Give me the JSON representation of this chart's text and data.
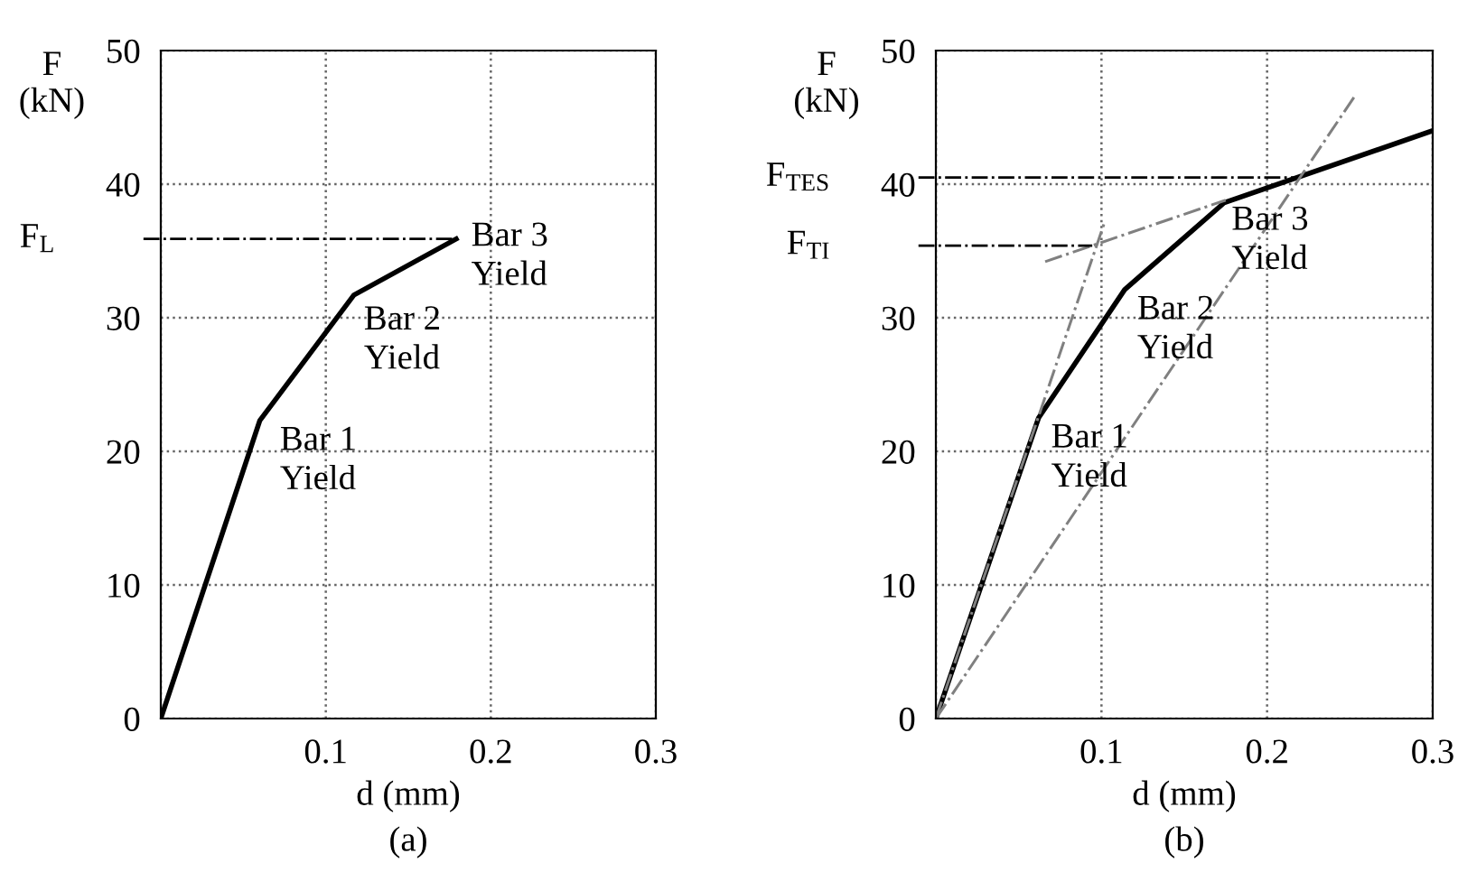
{
  "chart_data": [
    {
      "type": "line",
      "xlabel": "d (mm)",
      "ylabel": "F\n(kN)",
      "xlim": [
        0,
        0.3
      ],
      "ylim": [
        0,
        50
      ],
      "xticks": [
        {
          "value": 0,
          "label": null
        },
        0.1,
        0.2,
        0.3
      ],
      "yticks": [
        0,
        10,
        20,
        30,
        40,
        50
      ],
      "grid": true,
      "marker": "none",
      "series": [
        {
          "x": [
            0,
            0.06,
            0.117,
            0.179
          ],
          "values": [
            0,
            22.3,
            31.7,
            35.9
          ],
          "color": "#000000",
          "line_style": "solid"
        }
      ],
      "ref_lines": [
        {
          "axis": "y",
          "value": 35.9,
          "label": "F$_{L}$",
          "color": "#000000",
          "line_style": "dashdot"
        }
      ],
      "annotations": [
        {
          "text": "Bar 1\nYield",
          "x": 0.06,
          "y": 22.3
        },
        {
          "text": "Bar 2\nYield",
          "x": 0.117,
          "y": 31.7
        },
        {
          "text": "Bar 3\nYield",
          "x": 0.179,
          "y": 35.9
        },
        "(a)"
      ]
    },
    {
      "type": "line",
      "xlabel": "d (mm)",
      "ylabel": "F\n(kN)",
      "xlim": [
        0,
        0.3
      ],
      "ylim": [
        0,
        50
      ],
      "xticks": [
        {
          "value": 0,
          "label": null
        },
        0.1,
        0.2,
        0.3
      ],
      "yticks": [
        0,
        10,
        20,
        30,
        40,
        50
      ],
      "grid": true,
      "marker": "none",
      "series": [
        {
          "x": [
            0,
            0.062,
            0.114,
            0.174,
            0.3
          ],
          "values": [
            0,
            22.5,
            32.1,
            38.6,
            44
          ],
          "color": "#000000",
          "line_style": "solid"
        },
        {
          "x": [
            0,
            0.102
          ],
          "values": [
            0,
            37.2
          ],
          "color": "#808080",
          "line_style": "dashdot"
        },
        {
          "x": [
            0.066,
            0.175
          ],
          "values": [
            34.2,
            38.8
          ],
          "color": "#808080",
          "line_style": "dashdot"
        },
        {
          "x": [
            0,
            0.253
          ],
          "values": [
            0,
            46.6
          ],
          "color": "#808080",
          "line_style": "dashdot"
        }
      ],
      "ref_lines": [
        {
          "axis": "y",
          "value": 40.5,
          "label": "F$_{TES}$",
          "color": "#000000",
          "line_style": "dashdot"
        },
        {
          "axis": "y",
          "value": 35.4,
          "label": "F$_{TI}$",
          "color": "#000000",
          "line_style": "dashdot"
        }
      ],
      "annotations": [
        {
          "text": "Bar 1\nYield",
          "x": 0.062,
          "y": 22.5
        },
        {
          "text": "Bar 2\nYield",
          "x": 0.114,
          "y": 32.1
        },
        {
          "text": "Bar 3\nYield",
          "x": 0.174,
          "y": 38.6
        },
        "(b)"
      ]
    }
  ]
}
